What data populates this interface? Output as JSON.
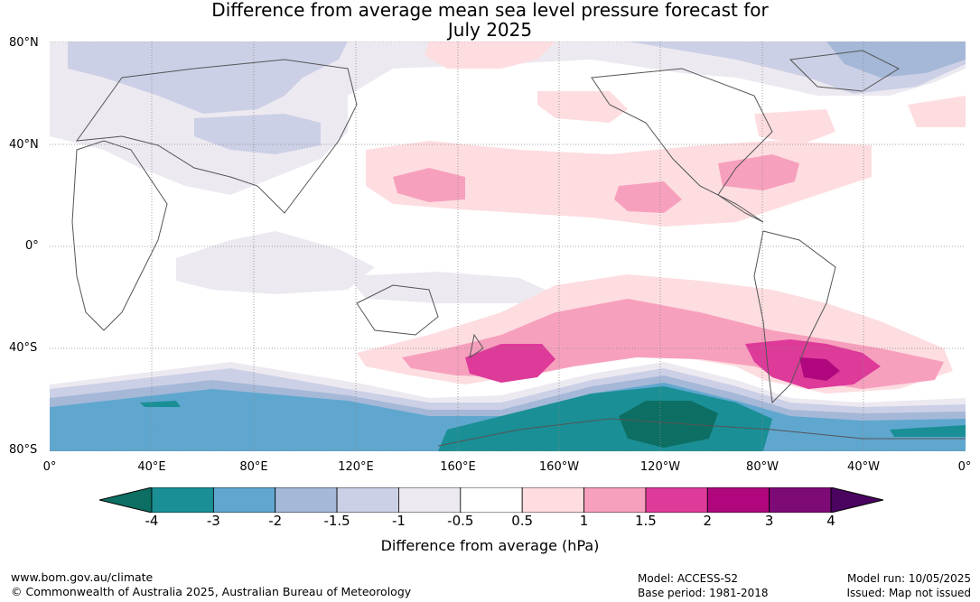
{
  "title_line1": "Difference from average mean sea level pressure forecast for",
  "title_line2": "July 2025",
  "lat_labels": [
    "80°N",
    "40°N",
    "0°",
    "40°S",
    "80°S"
  ],
  "lon_labels": [
    "0°",
    "40°E",
    "80°E",
    "120°E",
    "160°E",
    "160°W",
    "120°W",
    "80°W",
    "40°W",
    "0°"
  ],
  "colorbar": {
    "ticks": [
      "-4",
      "-3",
      "-2",
      "-1.5",
      "-1",
      "-0.5",
      "0.5",
      "1",
      "1.5",
      "2",
      "3",
      "4"
    ],
    "colors": [
      "#1a8f96",
      "#5fa7cf",
      "#a5b8d8",
      "#ccd0e6",
      "#ede9f1",
      "#ffffff",
      "#fddde0",
      "#f7a0be",
      "#de3a9a",
      "#b0067e",
      "#7e0a75"
    ],
    "low_extend_color": "#0d6f63",
    "high_extend_color": "#4a0460",
    "label": "Difference from average (hPa)"
  },
  "footer": {
    "website": "www.bom.gov.au/climate",
    "copyright": "© Commonwealth of Australia 2025, Australian Bureau of Meteorology",
    "model": "Model: ACCESS-S2",
    "base_period": "Base period: 1981-2018",
    "model_run": "Model run: 10/05/2025",
    "issued": "Issued: Map not issued"
  }
}
